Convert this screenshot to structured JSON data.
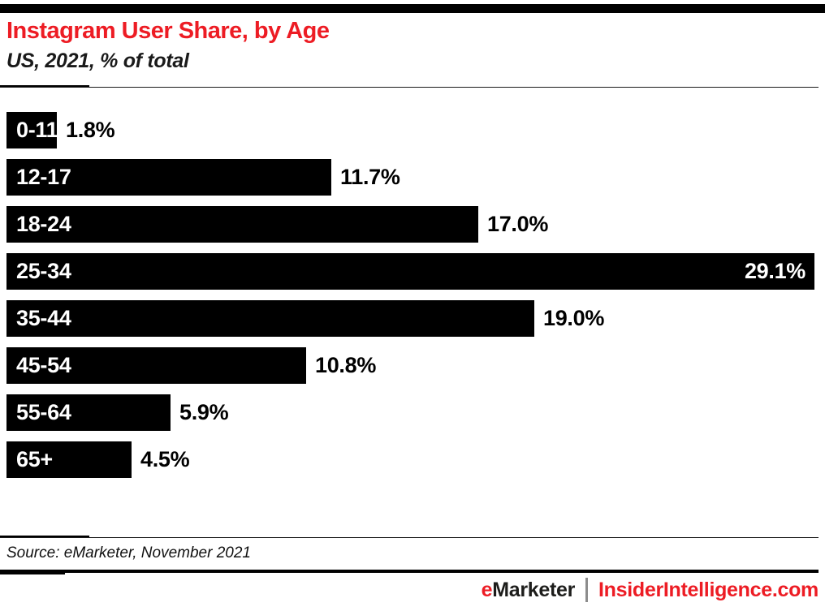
{
  "header": {
    "title": "Instagram User Share, by Age",
    "subtitle": "US, 2021, % of total"
  },
  "chart_data": {
    "type": "bar",
    "orientation": "horizontal",
    "title": "Instagram User Share, by Age",
    "subtitle": "US, 2021, % of total",
    "categories": [
      "0-11",
      "12-17",
      "18-24",
      "25-34",
      "35-44",
      "45-54",
      "55-64",
      "65+"
    ],
    "values": [
      1.8,
      11.7,
      17.0,
      29.1,
      19.0,
      10.8,
      5.9,
      4.5
    ],
    "value_labels": [
      "1.8%",
      "11.7%",
      "17.0%",
      "29.1%",
      "19.0%",
      "10.8%",
      "5.9%",
      "4.5%"
    ],
    "value_inside": [
      false,
      false,
      false,
      true,
      false,
      false,
      false,
      false
    ],
    "xlim": [
      0,
      29.1
    ],
    "grid": false,
    "legend": "none",
    "bar_color": "#000000",
    "category_label_color": "#ffffff",
    "value_label_color_outside": "#000000",
    "value_label_color_inside": "#ffffff"
  },
  "footer": {
    "source": "Source: eMarketer, November 2021",
    "brand_left_accent": "e",
    "brand_left_rest": "Marketer",
    "brand_right": "InsiderIntelligence.com"
  },
  "colors": {
    "accent_red": "#ED1C24",
    "bar_black": "#000000",
    "divider_gray": "#8c8c8c"
  }
}
